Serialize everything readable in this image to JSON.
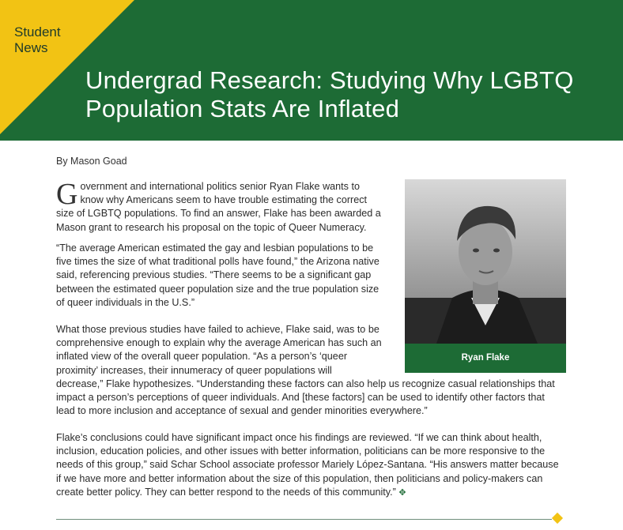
{
  "header": {
    "section_label_line1": "Student",
    "section_label_line2": "News",
    "title_line1": "Undergrad Research: Studying Why LGBTQ",
    "title_line2": "Population Stats Are Inflated"
  },
  "article": {
    "byline": "By Mason Goad",
    "dropcap": "G",
    "p1": "overnment and international politics senior Ryan Flake wants to know why Americans seem to have trouble estimating the correct size of LGBTQ populations. To find an answer, Flake has been awarded a Mason grant to research his proposal on the topic of Queer Numeracy.",
    "p2": "“The average American estimated the gay and lesbian populations to be five times the size of what traditional polls have found,” the Arizona native said, referencing previous studies. “There seems to be a significant gap between the estimated queer population size and the true population size of queer individuals in the U.S.”",
    "p3_narrow": "What those previous studies have failed to achieve, Flake said, was to be comprehensive enough to explain why the average American has such an inflated view of the overall queer population. “As a person’s ‘queer proximity’ increases, their innumeracy of queer populations will",
    "p3_rest": "decrease,” Flake hypothesizes. “Understanding these factors can also help us recognize casual relationships that impact a person’s perceptions of queer individuals. And [these factors] can be used to identify other factors that lead to more inclusion and acceptance of sexual and gender minorities everywhere.”",
    "p4": "Flake’s conclusions could have significant impact once his findings are reviewed. “If we can think about health, inclusion, education policies, and other issues with better information, politicians can be more responsive to the needs of this group,” said Schar School associate professor Mariely López-Santana. “His answers matter because if we have more and better information about the size of this population, then politicians and policy-makers can create better policy. They can better respond to the needs of this community.”",
    "end_mark": "✥"
  },
  "photo": {
    "caption": "Ryan Flake"
  },
  "colors": {
    "brand_green": "#1d6b35",
    "accent_yellow": "#f2c314"
  }
}
